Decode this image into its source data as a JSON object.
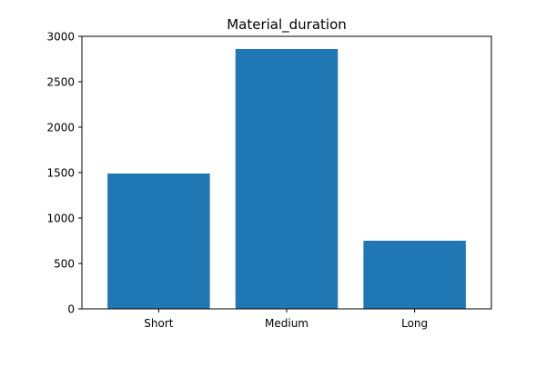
{
  "chart_data": {
    "type": "bar",
    "title": "Material_duration",
    "xlabel": "",
    "ylabel": "",
    "categories": [
      "Short",
      "Medium",
      "Long"
    ],
    "values": [
      1490,
      2860,
      750
    ],
    "ylim": [
      0,
      3000
    ],
    "yticks": [
      0,
      500,
      1000,
      1500,
      2000,
      2500,
      3000
    ],
    "bar_color": "#1f77b4",
    "grid": false,
    "legend": false
  }
}
